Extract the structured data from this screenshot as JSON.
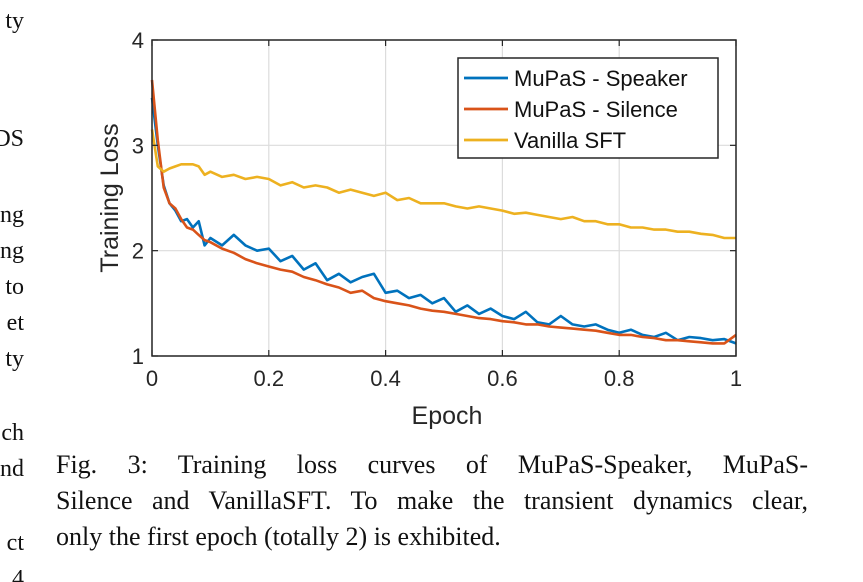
{
  "left_column_fragments": [
    "ty",
    "DS",
    "ng",
    "ng",
    "to",
    "et",
    "ty",
    "ch",
    "nd",
    "ct",
    "4"
  ],
  "chart_data": {
    "type": "line",
    "xlabel": "Epoch",
    "ylabel": "Training Loss",
    "xlim": [
      0,
      1
    ],
    "ylim": [
      1,
      4
    ],
    "xticks": [
      0,
      0.2,
      0.4,
      0.6,
      0.8,
      1
    ],
    "xtick_labels": [
      "0",
      "0.2",
      "0.4",
      "0.6",
      "0.8",
      "1"
    ],
    "yticks": [
      1,
      2,
      3,
      4
    ],
    "ytick_labels": [
      "1",
      "2",
      "3",
      "4"
    ],
    "grid": true,
    "legend_position": "top-right",
    "series": [
      {
        "name": "MuPaS - Speaker",
        "color": "#0072BD",
        "x": [
          0,
          0.01,
          0.02,
          0.03,
          0.04,
          0.05,
          0.06,
          0.07,
          0.08,
          0.09,
          0.1,
          0.12,
          0.14,
          0.16,
          0.18,
          0.2,
          0.22,
          0.24,
          0.26,
          0.28,
          0.3,
          0.32,
          0.34,
          0.36,
          0.38,
          0.4,
          0.42,
          0.44,
          0.46,
          0.48,
          0.5,
          0.52,
          0.54,
          0.56,
          0.58,
          0.6,
          0.62,
          0.64,
          0.66,
          0.68,
          0.7,
          0.72,
          0.74,
          0.76,
          0.78,
          0.8,
          0.82,
          0.84,
          0.86,
          0.88,
          0.9,
          0.92,
          0.94,
          0.96,
          0.98,
          1.0
        ],
        "y": [
          3.45,
          3.0,
          2.62,
          2.45,
          2.38,
          2.28,
          2.3,
          2.22,
          2.28,
          2.05,
          2.12,
          2.05,
          2.15,
          2.05,
          2.0,
          2.02,
          1.9,
          1.95,
          1.82,
          1.88,
          1.72,
          1.78,
          1.7,
          1.75,
          1.78,
          1.6,
          1.62,
          1.55,
          1.58,
          1.5,
          1.55,
          1.42,
          1.48,
          1.4,
          1.45,
          1.38,
          1.35,
          1.42,
          1.32,
          1.3,
          1.38,
          1.3,
          1.28,
          1.3,
          1.25,
          1.22,
          1.25,
          1.2,
          1.18,
          1.22,
          1.15,
          1.18,
          1.17,
          1.15,
          1.16,
          1.12
        ]
      },
      {
        "name": "MuPaS - Silence",
        "color": "#D95319",
        "x": [
          0,
          0.01,
          0.02,
          0.03,
          0.04,
          0.05,
          0.06,
          0.07,
          0.08,
          0.09,
          0.1,
          0.12,
          0.14,
          0.16,
          0.18,
          0.2,
          0.22,
          0.24,
          0.26,
          0.28,
          0.3,
          0.32,
          0.34,
          0.36,
          0.38,
          0.4,
          0.42,
          0.44,
          0.46,
          0.48,
          0.5,
          0.52,
          0.54,
          0.56,
          0.58,
          0.6,
          0.62,
          0.64,
          0.66,
          0.68,
          0.7,
          0.72,
          0.74,
          0.76,
          0.78,
          0.8,
          0.82,
          0.84,
          0.86,
          0.88,
          0.9,
          0.92,
          0.94,
          0.96,
          0.98,
          1.0
        ],
        "y": [
          3.62,
          3.05,
          2.6,
          2.45,
          2.4,
          2.3,
          2.22,
          2.2,
          2.15,
          2.1,
          2.08,
          2.02,
          1.98,
          1.92,
          1.88,
          1.85,
          1.82,
          1.8,
          1.75,
          1.72,
          1.68,
          1.65,
          1.6,
          1.62,
          1.55,
          1.52,
          1.5,
          1.48,
          1.45,
          1.43,
          1.42,
          1.4,
          1.38,
          1.36,
          1.35,
          1.33,
          1.32,
          1.3,
          1.3,
          1.28,
          1.27,
          1.26,
          1.25,
          1.24,
          1.22,
          1.2,
          1.2,
          1.18,
          1.17,
          1.15,
          1.15,
          1.14,
          1.13,
          1.12,
          1.12,
          1.2
        ]
      },
      {
        "name": "Vanilla SFT",
        "color": "#EDB120",
        "x": [
          0,
          0.01,
          0.02,
          0.03,
          0.04,
          0.05,
          0.06,
          0.07,
          0.08,
          0.09,
          0.1,
          0.12,
          0.14,
          0.16,
          0.18,
          0.2,
          0.22,
          0.24,
          0.26,
          0.28,
          0.3,
          0.32,
          0.34,
          0.36,
          0.38,
          0.4,
          0.42,
          0.44,
          0.46,
          0.48,
          0.5,
          0.52,
          0.54,
          0.56,
          0.58,
          0.6,
          0.62,
          0.64,
          0.66,
          0.68,
          0.7,
          0.72,
          0.74,
          0.76,
          0.78,
          0.8,
          0.82,
          0.84,
          0.86,
          0.88,
          0.9,
          0.92,
          0.94,
          0.96,
          0.98,
          1.0
        ],
        "y": [
          3.15,
          2.8,
          2.75,
          2.78,
          2.8,
          2.82,
          2.82,
          2.82,
          2.8,
          2.72,
          2.75,
          2.7,
          2.72,
          2.68,
          2.7,
          2.68,
          2.62,
          2.65,
          2.6,
          2.62,
          2.6,
          2.55,
          2.58,
          2.55,
          2.52,
          2.55,
          2.48,
          2.5,
          2.45,
          2.45,
          2.45,
          2.42,
          2.4,
          2.42,
          2.4,
          2.38,
          2.35,
          2.36,
          2.34,
          2.32,
          2.3,
          2.32,
          2.28,
          2.28,
          2.25,
          2.25,
          2.22,
          2.22,
          2.2,
          2.2,
          2.18,
          2.18,
          2.16,
          2.15,
          2.12,
          2.12
        ]
      }
    ]
  },
  "caption": {
    "line1": "Fig. 3: Training loss curves of MuPaS-Speaker, MuPaS-",
    "line2": "Silence and VanillaSFT. To make the transient dynamics clear,",
    "line3": "only the first epoch (totally 2) is exhibited."
  }
}
